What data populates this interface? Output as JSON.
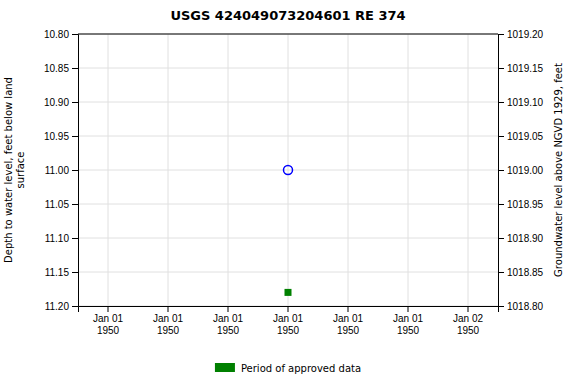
{
  "chart_data": {
    "type": "scatter",
    "title": "USGS 424049073204601 RE 374",
    "y_label": "Depth to water level, feet below land\nsurface",
    "y2_label": "Groundwater level above NGVD 1929, feet",
    "categories": [
      "Jan 01\n1950",
      "Jan 01\n1950",
      "Jan 01\n1950",
      "Jan 01\n1950",
      "Jan 01\n1950",
      "Jan 01\n1950",
      "Jan 02\n1950"
    ],
    "series": [
      {
        "color": "blue",
        "marker": "circle-open",
        "values": [
          null,
          null,
          null,
          11.0,
          null,
          null,
          null
        ]
      },
      {
        "name": "Period of approved data",
        "color": "#008000",
        "marker": "square",
        "values": [
          null,
          null,
          null,
          11.18,
          null,
          null,
          null
        ]
      }
    ],
    "ylim": [
      11.2,
      10.8
    ],
    "yticks": [
      {
        "value": 10.8,
        "label": "10.80"
      },
      {
        "value": 10.85,
        "label": "10.85"
      },
      {
        "value": 10.9,
        "label": "10.90"
      },
      {
        "value": 10.95,
        "label": "10.95"
      },
      {
        "value": 11.0,
        "label": "11.00"
      },
      {
        "value": 11.05,
        "label": "11.05"
      },
      {
        "value": 11.1,
        "label": "11.10"
      },
      {
        "value": 11.15,
        "label": "11.15"
      },
      {
        "value": 11.2,
        "label": "11.20"
      }
    ],
    "y2lim": [
      1018.8,
      1019.2
    ],
    "y2ticks": [
      {
        "value": 1019.2,
        "label": "1019.20"
      },
      {
        "value": 1019.15,
        "label": "1019.15"
      },
      {
        "value": 1019.1,
        "label": "1019.10"
      },
      {
        "value": 1019.05,
        "label": "1019.05"
      },
      {
        "value": 1019.0,
        "label": "1019.00"
      },
      {
        "value": 1018.95,
        "label": "1018.95"
      },
      {
        "value": 1018.9,
        "label": "1018.90"
      },
      {
        "value": 1018.85,
        "label": "1018.85"
      },
      {
        "value": 1018.8,
        "label": "1018.80"
      }
    ],
    "grid": true,
    "legend": "bottom"
  }
}
